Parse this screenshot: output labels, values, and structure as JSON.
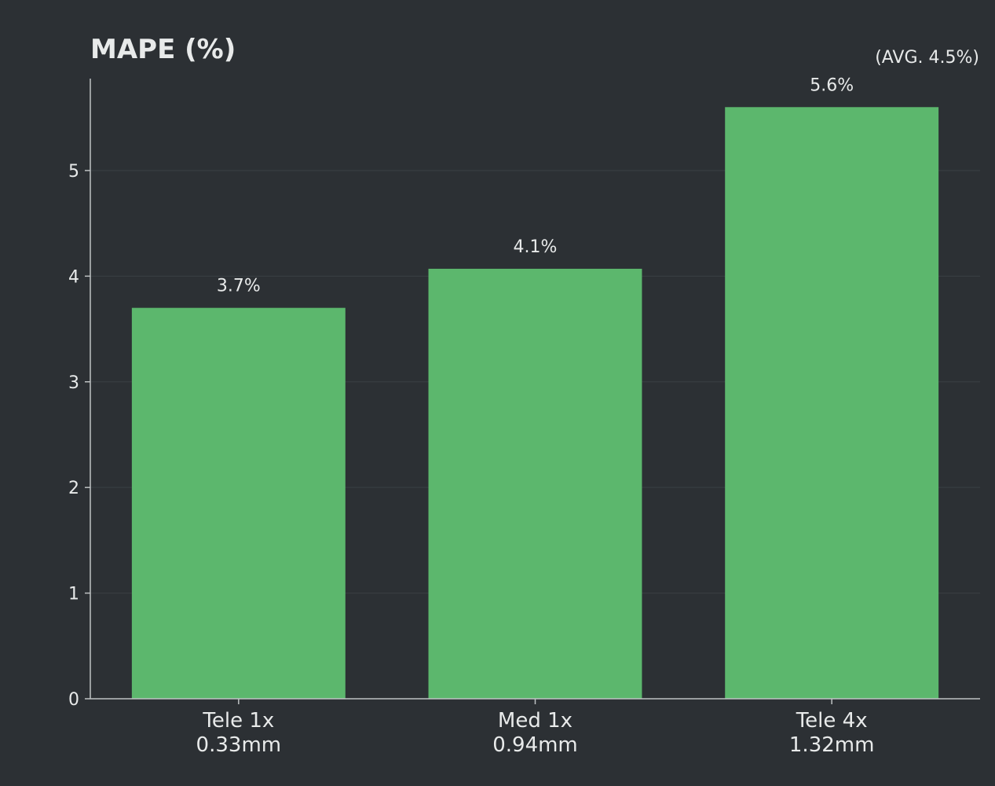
{
  "colors": {
    "background": "#2c3034",
    "bar": "#5cb76d",
    "text": "#e8eaea",
    "axis": "#bfc3c4",
    "grid": "#3a3f43"
  },
  "chart_data": {
    "type": "bar",
    "title": "MAPE (%)",
    "subtitle": "(AVG. 4.5%)",
    "xlabel": "",
    "ylabel": "",
    "ylim": [
      0,
      5.87
    ],
    "yticks": [
      0,
      1,
      2,
      3,
      4,
      5
    ],
    "grid": true,
    "categories": [
      {
        "line1": "Tele 1x",
        "line2": "0.33mm"
      },
      {
        "line1": "Med 1x",
        "line2": "0.94mm"
      },
      {
        "line1": "Tele 4x",
        "line2": "1.32mm"
      }
    ],
    "values": [
      3.7,
      4.07,
      5.6
    ],
    "value_labels": [
      "3.7%",
      "4.1%",
      "5.6%"
    ]
  }
}
